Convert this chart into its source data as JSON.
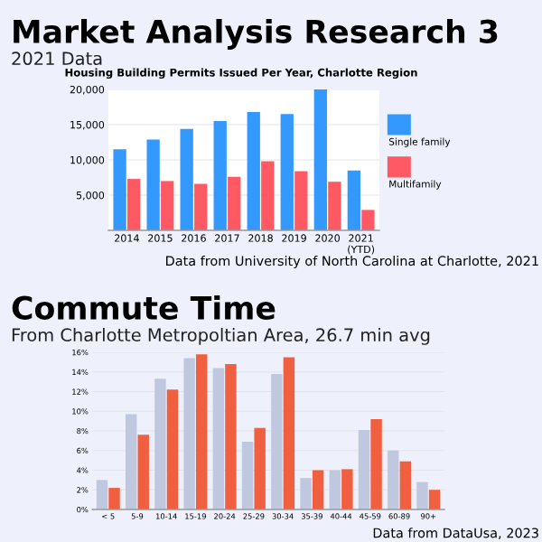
{
  "chart_data": [
    {
      "type": "bar",
      "title": "Market Analysis Research 3",
      "subtitle": "2021 Data",
      "annotations": [
        "Housing Building Permits Issued Per Year, Charlotte Region",
        "Data from University of North Carolina at Charlotte, 2021"
      ],
      "categories": [
        "2014",
        "2015",
        "2016",
        "2017",
        "2018",
        "2019",
        "2020",
        "2021\n(YTD)"
      ],
      "series": [
        {
          "name": "Single family",
          "color": "#3399ff",
          "values": [
            11500,
            12900,
            14400,
            15500,
            16800,
            16500,
            20000,
            8500
          ]
        },
        {
          "name": "Multifamily",
          "color": "#ff5a64",
          "values": [
            7300,
            7000,
            6600,
            7600,
            9800,
            8400,
            6900,
            2900
          ]
        }
      ],
      "ylim": [
        0,
        20000
      ],
      "yticks": [
        {
          "value": 5000,
          "label": "5,000"
        },
        {
          "value": 10000,
          "label": "10,000"
        },
        {
          "value": 15000,
          "label": "15,000"
        },
        {
          "value": 20000,
          "label": "20,000"
        }
      ],
      "grid": "y",
      "legend": "right"
    },
    {
      "type": "bar",
      "title": "Commute Time",
      "subtitle": "From Charlotte Metropoltian Area, 26.7 min avg",
      "annotations": [
        "Data from DataUsa, 2023"
      ],
      "categories": [
        "< 5",
        "5-9",
        "10-14",
        "15-19",
        "20-24",
        "25-29",
        "30-34",
        "35-39",
        "40-44",
        "45-59",
        "60-89",
        "90+"
      ],
      "series": [
        {
          "color": "#c0c8e0",
          "values": [
            3.0,
            9.7,
            13.3,
            15.4,
            14.4,
            6.9,
            13.8,
            3.2,
            4.0,
            8.1,
            6.0,
            2.8
          ]
        },
        {
          "color": "#f06040",
          "values": [
            2.2,
            7.6,
            12.2,
            15.8,
            14.8,
            8.3,
            15.5,
            4.0,
            4.1,
            9.2,
            4.9,
            2.0
          ]
        }
      ],
      "ylim": [
        0,
        16
      ],
      "yticks": [
        {
          "value": 0,
          "label": "0%"
        },
        {
          "value": 2,
          "label": "2%"
        },
        {
          "value": 4,
          "label": "4%"
        },
        {
          "value": 6,
          "label": "6%"
        },
        {
          "value": 8,
          "label": "8%"
        },
        {
          "value": 10,
          "label": "10%"
        },
        {
          "value": 12,
          "label": "12%"
        },
        {
          "value": 14,
          "label": "14%"
        },
        {
          "value": 16,
          "label": "16%"
        }
      ],
      "grid": "y"
    }
  ]
}
